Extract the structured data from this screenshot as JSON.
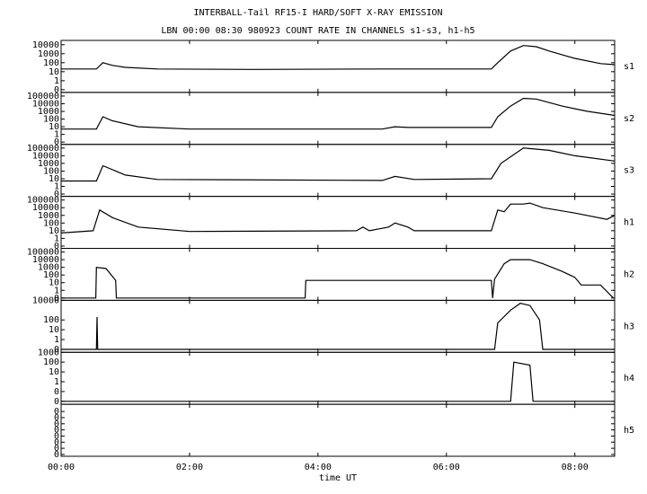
{
  "chart_data": {
    "type": "line",
    "title": "INTERBALL-Tail RF15-I HARD/SOFT X-RAY EMISSION",
    "subtitle": "LBN 00:00 08:30 980923  COUNT RATE IN CHANNELS s1-s3, h1-h5",
    "xlabel": "time UT",
    "xlim": [
      0,
      8.62
    ],
    "xticks": [
      {
        "value": 0,
        "label": "00:00"
      },
      {
        "value": 2,
        "label": "02:00"
      },
      {
        "value": 4,
        "label": "04:00"
      },
      {
        "value": 6,
        "label": "06:00"
      },
      {
        "value": 8,
        "label": "08:00"
      }
    ],
    "log_scale": true,
    "panels": [
      {
        "name": "s1",
        "ylim": [
          0.05,
          30000
        ],
        "yticks": [
          {
            "value": 0.1,
            "label": "0"
          },
          1,
          10,
          100,
          1000,
          10000
        ],
        "x": [
          0,
          0.55,
          0.65,
          0.8,
          1.0,
          1.5,
          3,
          5,
          6.7,
          6.8,
          7.0,
          7.2,
          7.4,
          7.6,
          8.0,
          8.4,
          8.62
        ],
        "values": [
          20,
          20,
          100,
          50,
          30,
          20,
          18,
          20,
          20,
          100,
          2000,
          8000,
          6000,
          2000,
          300,
          80,
          60
        ]
      },
      {
        "name": "s2",
        "ylim": [
          0.05,
          300000
        ],
        "yticks": [
          {
            "value": 0.1,
            "label": "0"
          },
          1,
          10,
          100,
          1000,
          10000,
          100000
        ],
        "x": [
          0,
          0.55,
          0.65,
          0.8,
          1.2,
          2,
          5.0,
          5.2,
          5.4,
          6.7,
          6.8,
          7.0,
          7.2,
          7.4,
          7.8,
          8.2,
          8.62
        ],
        "values": [
          5,
          5,
          200,
          60,
          10,
          5,
          5,
          10,
          8,
          8,
          200,
          5000,
          50000,
          40000,
          5000,
          1000,
          300
        ]
      },
      {
        "name": "s3",
        "ylim": [
          0.05,
          300000
        ],
        "yticks": [
          {
            "value": 0.1,
            "label": "0"
          },
          1,
          10,
          100,
          1000,
          10000,
          100000
        ],
        "x": [
          0,
          0.55,
          0.65,
          1.0,
          1.5,
          5.0,
          5.2,
          5.5,
          6.7,
          6.85,
          7.2,
          7.6,
          8.0,
          8.62
        ],
        "values": [
          5,
          5,
          500,
          30,
          8,
          6,
          20,
          8,
          10,
          1000,
          100000,
          50000,
          10000,
          2000
        ]
      },
      {
        "name": "h1",
        "ylim": [
          0.05,
          300000
        ],
        "yticks": [
          {
            "value": 0.1,
            "label": "0"
          },
          1,
          10,
          100,
          1000,
          10000,
          100000
        ],
        "x": [
          0,
          0.5,
          0.6,
          0.8,
          1.2,
          2,
          4.6,
          4.7,
          4.8,
          5.1,
          5.2,
          5.4,
          5.5,
          6.7,
          6.8,
          6.9,
          7.0,
          7.2,
          7.3,
          7.5,
          8.0,
          8.5,
          8.62
        ],
        "values": [
          5,
          10,
          5000,
          500,
          30,
          8,
          10,
          30,
          10,
          30,
          100,
          30,
          10,
          10,
          5000,
          3000,
          30000,
          30000,
          40000,
          10000,
          2000,
          300,
          1000
        ]
      },
      {
        "name": "h2",
        "ylim": [
          0.05,
          300000
        ],
        "yticks": [
          {
            "value": 0.1,
            "label": "0"
          },
          1,
          10,
          100,
          1000,
          10000,
          100000
        ],
        "x": [
          0,
          0.54,
          0.55,
          0.7,
          0.85,
          0.86,
          3.8,
          3.81,
          6.7,
          6.72,
          6.75,
          6.9,
          7.0,
          7.3,
          7.5,
          7.8,
          8.0,
          8.1,
          8.4,
          8.6
        ],
        "values": [
          0.1,
          0.1,
          1000,
          700,
          20,
          0.1,
          0.1,
          20,
          20,
          0.1,
          30,
          3000,
          10000,
          10000,
          3000,
          300,
          50,
          5,
          5,
          0.1
        ]
      },
      {
        "name": "h3",
        "ylim": [
          0.05,
          10000
        ],
        "yticks": [
          {
            "value": 0.1,
            "label": "0"
          },
          1,
          10,
          100,
          10000
        ],
        "x": [
          0,
          0.55,
          0.56,
          0.57,
          6.75,
          6.8,
          7.0,
          7.15,
          7.3,
          7.45,
          7.5,
          8.62
        ],
        "values": [
          0.1,
          0.1,
          200,
          0.1,
          0.1,
          50,
          1000,
          5000,
          3000,
          100,
          0.1,
          0.1
        ]
      },
      {
        "name": "h4",
        "ylim": [
          0.005,
          1000
        ],
        "yticks": [
          {
            "value": 0.01,
            "label": "0"
          },
          {
            "value": 0.1,
            "label": "0"
          },
          1,
          10,
          100,
          1000
        ],
        "x": [
          0,
          7.0,
          7.05,
          7.3,
          7.35,
          8.62
        ],
        "values": [
          0.01,
          0.01,
          100,
          50,
          0.01,
          0.01
        ]
      },
      {
        "name": "h5",
        "ylim": [
          5e-09,
          1.5
        ],
        "yticks": [
          {
            "value": 1e-08,
            "label": "0"
          },
          {
            "value": 1e-07,
            "label": "0"
          },
          {
            "value": 1e-06,
            "label": "0"
          },
          {
            "value": 1e-05,
            "label": "0"
          },
          {
            "value": 0.0001,
            "label": "0"
          },
          {
            "value": 0.001,
            "label": "0"
          },
          {
            "value": 0.01,
            "label": "0"
          },
          {
            "value": 0.1,
            "label": "0"
          }
        ]
      }
    ]
  }
}
